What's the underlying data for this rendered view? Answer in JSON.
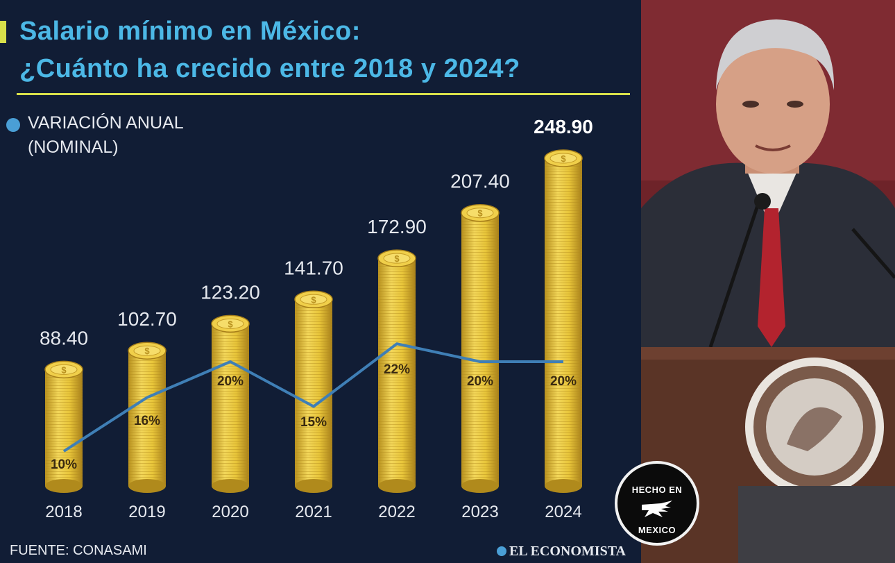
{
  "title_line1": "Salario mínimo en México:",
  "title_line2": "¿Cuánto ha crecido entre 2018 y 2024?",
  "legend_line1": "VARIACIÓN ANUAL",
  "legend_line2": "(NOMINAL)",
  "source": "FUENTE: CONASAMI",
  "brand": "EL ECONOMISTA",
  "badge_top": "HECHO EN",
  "badge_bottom": "MEXICO",
  "colors": {
    "background": "#111d35",
    "title": "#4cb8e6",
    "accent": "#d8e04a",
    "coin": "#e8c53a",
    "line": "#3f7fb6"
  },
  "chart_data": {
    "type": "bar",
    "categories": [
      "2018",
      "2019",
      "2020",
      "2021",
      "2022",
      "2023",
      "2024"
    ],
    "values": [
      88.4,
      102.7,
      123.2,
      141.7,
      172.9,
      207.4,
      248.9
    ],
    "value_labels": [
      "88.40",
      "102.70",
      "123.20",
      "141.70",
      "172.90",
      "207.40",
      "248.90"
    ],
    "line_series": {
      "name": "VARIACIÓN ANUAL (NOMINAL)",
      "values": [
        10,
        16,
        20,
        15,
        22,
        20,
        20
      ],
      "labels": [
        "10%",
        "16%",
        "20%",
        "15%",
        "22%",
        "20%",
        "20%"
      ]
    },
    "bar_style": "stacked coins",
    "legend_position": "top-left",
    "grid": false
  }
}
